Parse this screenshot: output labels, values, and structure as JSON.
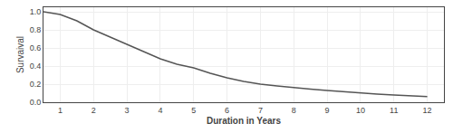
{
  "chart_data": {
    "type": "line",
    "xlabel": "Duration in Years",
    "ylabel": "Survaival",
    "x": [
      0.5,
      1,
      1.5,
      2,
      2.5,
      3,
      3.5,
      4,
      4.5,
      5,
      5.5,
      6,
      6.5,
      7,
      7.5,
      8,
      8.5,
      9,
      9.5,
      10,
      10.5,
      11,
      11.5,
      12
    ],
    "values": [
      1.0,
      0.97,
      0.9,
      0.8,
      0.72,
      0.64,
      0.56,
      0.48,
      0.42,
      0.38,
      0.32,
      0.27,
      0.23,
      0.2,
      0.18,
      0.16,
      0.145,
      0.13,
      0.115,
      0.1,
      0.09,
      0.08,
      0.07,
      0.063
    ],
    "color": "#555555",
    "xlim": [
      0.5,
      12.5
    ],
    "ylim": [
      0,
      1.05
    ],
    "xticks": [
      1,
      2,
      3,
      4,
      5,
      6,
      7,
      8,
      9,
      10,
      11,
      12
    ],
    "yticks": [
      {
        "value": 0,
        "label": "0.0"
      },
      0.2,
      0.4,
      0.6,
      0.8,
      {
        "value": 1,
        "label": "1.0"
      }
    ],
    "grid": true
  }
}
